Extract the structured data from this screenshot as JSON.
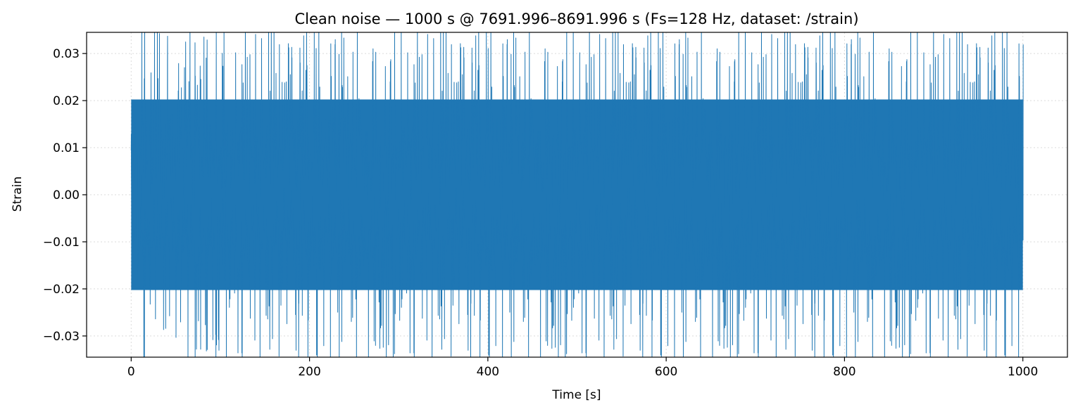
{
  "chart_data": {
    "type": "line",
    "title": "Clean noise — 1000 s @ 7691.996–8691.996 s  (Fs=128 Hz, dataset: /strain)",
    "xlabel": "Time [s]",
    "ylabel": "Strain",
    "xlim": [
      -50,
      1050
    ],
    "ylim": [
      -0.0345,
      0.0345
    ],
    "xticks": [
      0,
      200,
      400,
      600,
      800,
      1000
    ],
    "xtick_labels": [
      "0",
      "200",
      "400",
      "600",
      "800",
      "1000"
    ],
    "yticks": [
      0.03,
      0.02,
      0.01,
      0.0,
      -0.01,
      -0.02,
      -0.03
    ],
    "ytick_labels": [
      "0.03",
      "0.02",
      "0.01",
      "0.00",
      "−0.01",
      "−0.02",
      "−0.03"
    ],
    "grid": true,
    "series": [
      {
        "color": "#1f77b4",
        "x_start": 0,
        "x_end": 1000,
        "sample_rate_hz": 128,
        "core_amplitude": 0.022,
        "typical_peak_amplitude": 0.029,
        "max_peak_amplitude": 0.0345
      }
    ]
  }
}
